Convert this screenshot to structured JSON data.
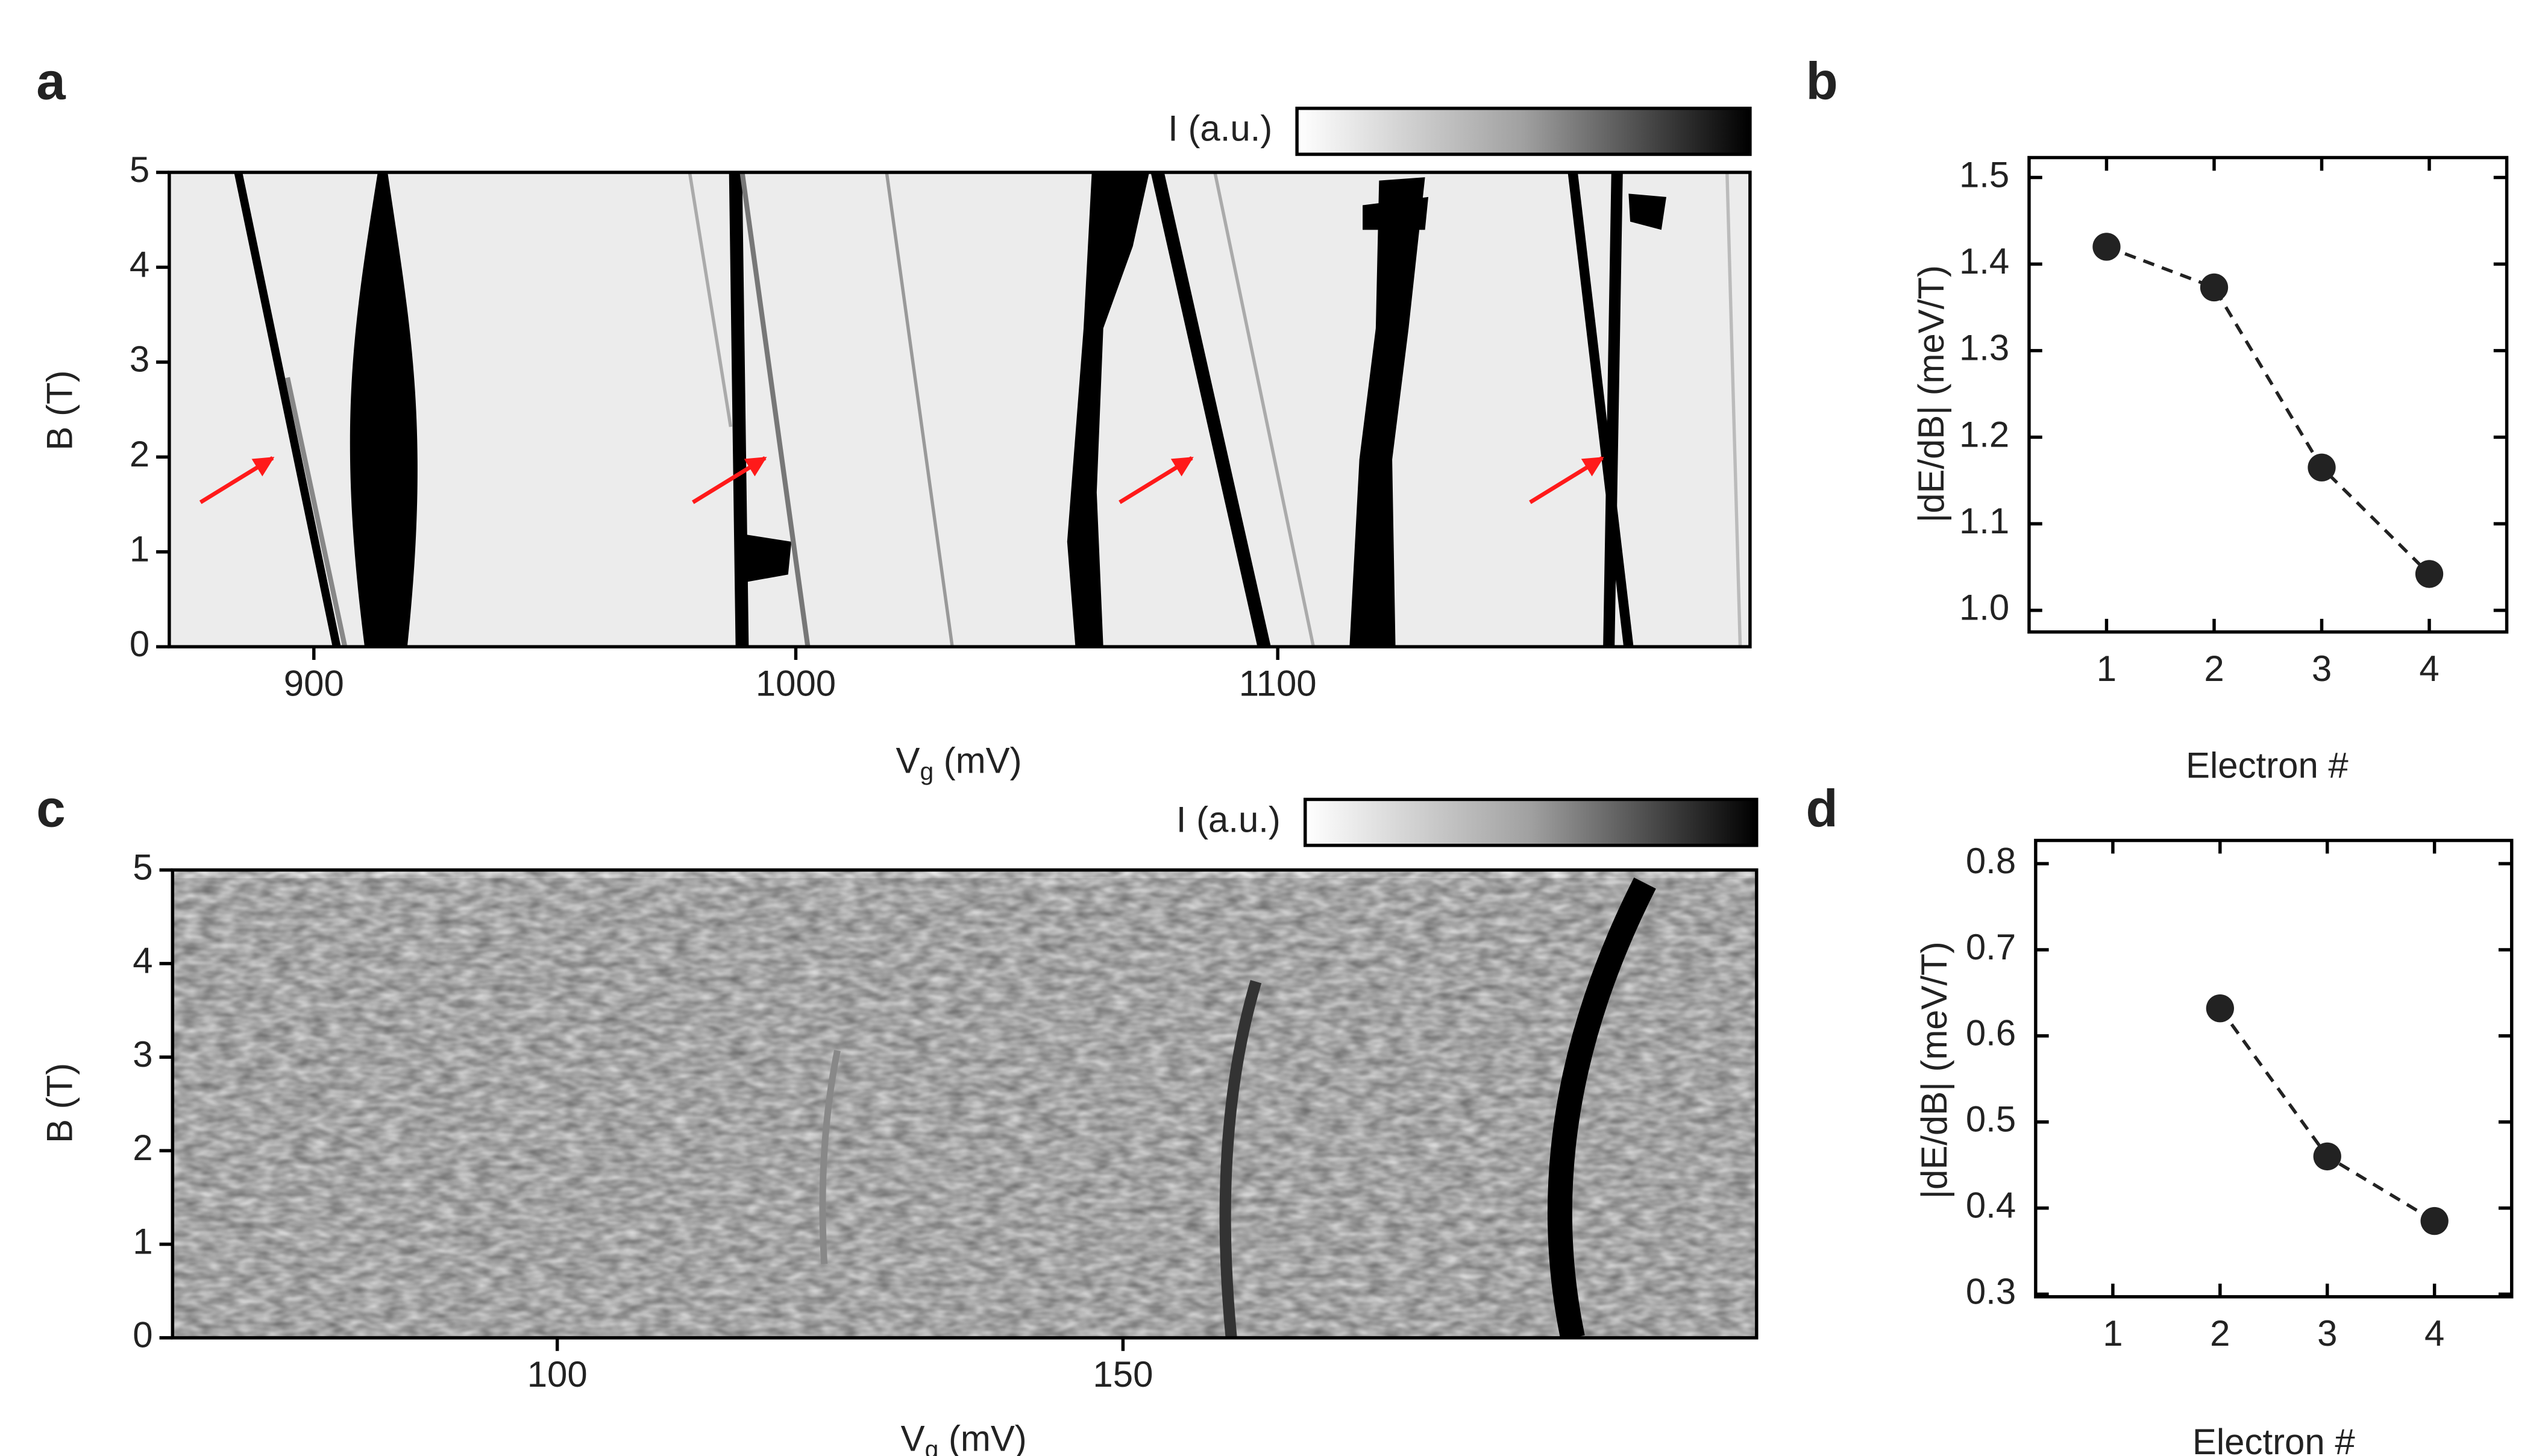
{
  "chart_data": [
    {
      "type": "heatmap",
      "panel": "a",
      "colorbar_label": "I (a.u.)",
      "xlabel": [
        "V",
        "g",
        " (mV)"
      ],
      "ylabel": "B (T)",
      "xlim": [
        870,
        1198
      ],
      "xticks": [
        900,
        1000,
        1100
      ],
      "ylim": [
        0,
        5
      ],
      "yticks": [
        0,
        1,
        2,
        3,
        4,
        5
      ]
    },
    {
      "type": "line",
      "panel": "b",
      "xlabel": "Electron #",
      "ylabel": "|dE/dB| (meV/T)",
      "x": [
        1,
        2,
        3,
        4
      ],
      "values": [
        1.42,
        1.373,
        1.165,
        1.042
      ],
      "color": "#222222",
      "xlim": [
        0.28,
        4.72
      ],
      "xticks": [
        1,
        2,
        3,
        4
      ],
      "ylim": [
        0.975,
        1.523
      ],
      "yticks": [
        {
          "value": 1.0,
          "label": "1.0"
        },
        1.1,
        1.2,
        1.3,
        1.4,
        1.5
      ]
    },
    {
      "type": "heatmap",
      "panel": "c",
      "colorbar_label": "I (a.u.)",
      "xlabel": [
        "V",
        "g",
        " (mV)"
      ],
      "ylabel": "B (T)",
      "xlim": [
        66,
        206
      ],
      "xticks": [
        100,
        150
      ],
      "ylim": [
        0,
        5
      ],
      "yticks": [
        0,
        1,
        2,
        3,
        4,
        5
      ]
    },
    {
      "type": "line",
      "panel": "d",
      "xlabel": "Electron #",
      "ylabel": "|dE/dB| (meV/T)",
      "x": [
        2,
        3,
        4
      ],
      "values": [
        0.632,
        0.46,
        0.385
      ],
      "color": "#222222",
      "xlim": [
        0.28,
        4.72
      ],
      "xticks": [
        1,
        2,
        3,
        4
      ],
      "ylim": [
        0.297,
        0.827
      ],
      "yticks": [
        0.3,
        0.4,
        0.5,
        0.6,
        0.7,
        0.8
      ]
    }
  ]
}
